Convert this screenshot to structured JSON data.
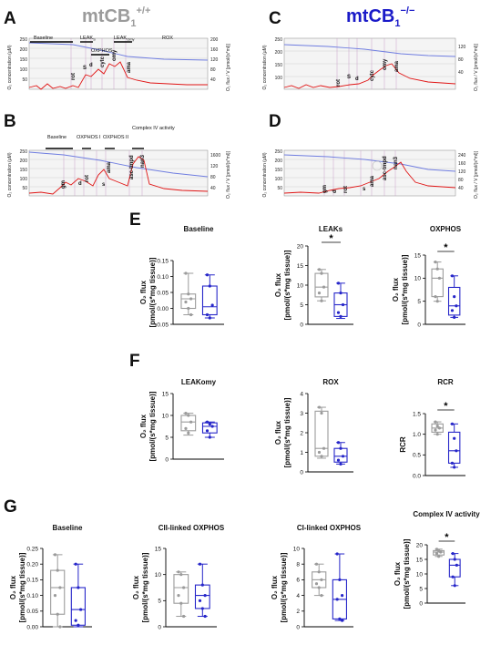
{
  "colors": {
    "wt": "#9b9b9b",
    "ko": "#2626c9",
    "o2_trace": "#6f7de0",
    "flux_trace": "#e01515",
    "title_ko": "#1a1ac8"
  },
  "panels": {
    "A": "A",
    "B": "B",
    "C": "C",
    "D": "D",
    "E": "E",
    "F": "F",
    "G": "G"
  },
  "genotypes": {
    "wt_main": "mtCB",
    "wt_sub": "1",
    "wt_sup": "+/+",
    "ko_main": "mtCB",
    "ko_sub": "1",
    "ko_sup": "−/−"
  },
  "traces": {
    "left_axis_label": "O₂ concentration (µM)",
    "right_axis_label": "O₂ flux / V [pmol/(s*ml)]",
    "A": {
      "left_ticks": [
        "250",
        "200",
        "150",
        "100",
        "50"
      ],
      "right_ticks": [
        "200",
        "160",
        "120",
        "80",
        "40"
      ],
      "segments": [
        "Baseline",
        "LEAK",
        "OXPHOS",
        "LEAK",
        "ROX"
      ],
      "segment_subs": [
        "",
        "S",
        "",
        "Omy",
        ""
      ],
      "events": [
        "rot",
        "S",
        "d",
        "cytc",
        "omy",
        "ama"
      ]
    },
    "B": {
      "left_ticks": [
        "250",
        "200",
        "150",
        "100",
        "50"
      ],
      "right_ticks": [
        "1600",
        "120",
        "80",
        "40"
      ],
      "segments": [
        "Baseline",
        "OXPHOS I",
        "OXPHOS II",
        "Complex IV activity"
      ],
      "events": [
        "gm",
        "d",
        "rot",
        "s",
        "ama",
        "asc-tmpd",
        "nan3"
      ]
    },
    "C": {
      "left_ticks": [
        "250",
        "200",
        "150",
        "100"
      ],
      "right_ticks": [
        "120",
        "80",
        "40"
      ],
      "events": [
        "rot",
        "S",
        "d",
        "cytc",
        "omy",
        "ama"
      ]
    },
    "D": {
      "left_ticks": [
        "250",
        "200",
        "150",
        "100",
        "50"
      ],
      "right_ticks": [
        "240",
        "160",
        "120",
        "80",
        "40"
      ],
      "events": [
        "gm",
        "d",
        "rot",
        "s",
        "ama",
        "asc-tmpd",
        "nan3"
      ]
    }
  },
  "y_label_line1": "O₂ flux",
  "y_label_line2": "[pmol/(s*mg tissue)]",
  "rcr_label": "RCR",
  "significance": "*",
  "chart_data": [
    {
      "type": "box",
      "panel": "E",
      "title": "Baseline",
      "ylim": [
        -0.05,
        0.15
      ],
      "ticks": [
        "0.15",
        "0.10",
        "0.05",
        "0.00",
        "-0.05"
      ],
      "series": [
        {
          "color": "wt",
          "whisker": [
            -0.02,
            0.11
          ],
          "box": [
            0.0,
            0.045
          ],
          "median": 0.03,
          "points": [
            0.11,
            0.045,
            0.03,
            0.02,
            0.0,
            -0.02
          ]
        },
        {
          "color": "ko",
          "whisker": [
            -0.03,
            0.105
          ],
          "box": [
            -0.02,
            0.07
          ],
          "median": 0.005,
          "points": [
            0.105,
            0.07,
            0.01,
            -0.02,
            -0.03
          ]
        }
      ],
      "sig": false
    },
    {
      "type": "box",
      "panel": "E",
      "title": "LEAKs",
      "ylim": [
        0,
        20
      ],
      "ticks": [
        "20",
        "15",
        "10",
        "5",
        "0"
      ],
      "series": [
        {
          "color": "wt",
          "whisker": [
            6,
            14
          ],
          "box": [
            7,
            13
          ],
          "median": 9.5,
          "points": [
            14,
            13,
            9.5,
            8,
            6
          ]
        },
        {
          "color": "ko",
          "whisker": [
            1.5,
            10.5
          ],
          "box": [
            2,
            8
          ],
          "median": 5,
          "points": [
            10.5,
            8,
            5,
            3,
            2
          ]
        }
      ],
      "sig": true
    },
    {
      "type": "box",
      "panel": "E",
      "title": "OXPHOS",
      "ylim": [
        0,
        15
      ],
      "ticks": [
        "15",
        "10",
        "5",
        "0"
      ],
      "series": [
        {
          "color": "wt",
          "whisker": [
            5,
            13.5
          ],
          "box": [
            6,
            12
          ],
          "median": 10,
          "points": [
            13.5,
            12,
            10,
            6,
            5
          ]
        },
        {
          "color": "ko",
          "whisker": [
            1.5,
            10.5
          ],
          "box": [
            2,
            8
          ],
          "median": 4,
          "points": [
            10.5,
            6,
            4,
            3,
            1.5
          ]
        }
      ],
      "sig": true
    },
    {
      "type": "box",
      "panel": "F",
      "title": "LEAKomy",
      "ylim": [
        0,
        15
      ],
      "ticks": [
        "15",
        "10",
        "5",
        "0"
      ],
      "series": [
        {
          "color": "wt",
          "whisker": [
            5.5,
            10.5
          ],
          "box": [
            6.5,
            10
          ],
          "median": 8.5,
          "points": [
            10.5,
            10,
            8.5,
            7,
            6
          ]
        },
        {
          "color": "ko",
          "whisker": [
            5,
            8.5
          ],
          "box": [
            6,
            8.3
          ],
          "median": 7.5,
          "points": [
            8.5,
            8,
            7.5,
            6.5,
            5
          ]
        }
      ],
      "sig": false
    },
    {
      "type": "box",
      "panel": "F",
      "title": "ROX",
      "ylim": [
        0,
        4
      ],
      "ticks": [
        "4",
        "3",
        "2",
        "1",
        "0"
      ],
      "series": [
        {
          "color": "wt",
          "whisker": [
            0.7,
            3.3
          ],
          "box": [
            0.8,
            3.1
          ],
          "median": 1.2,
          "points": [
            3.3,
            3.0,
            1.2,
            1.0,
            0.8
          ]
        },
        {
          "color": "ko",
          "whisker": [
            0.4,
            1.5
          ],
          "box": [
            0.5,
            1.2
          ],
          "median": 0.8,
          "points": [
            1.5,
            1.2,
            0.8,
            0.6,
            0.4
          ]
        }
      ],
      "sig": false
    },
    {
      "type": "box",
      "panel": "F",
      "title": "RCR",
      "ylabel": "RCR",
      "ylim": [
        0,
        1.5
      ],
      "ticks": [
        "1.5",
        "1.0",
        "0.5",
        "0.0"
      ],
      "series": [
        {
          "color": "wt",
          "whisker": [
            1.0,
            1.3
          ],
          "box": [
            1.05,
            1.25
          ],
          "median": 1.15,
          "points": [
            1.3,
            1.2,
            1.15,
            1.1,
            1.0
          ]
        },
        {
          "color": "ko",
          "whisker": [
            0.2,
            1.25
          ],
          "box": [
            0.3,
            1.05
          ],
          "median": 0.6,
          "points": [
            1.25,
            0.9,
            0.6,
            0.3,
            0.2
          ]
        }
      ],
      "sig": true
    },
    {
      "type": "box",
      "panel": "G",
      "title": "Baseline",
      "ylim": [
        0,
        0.25
      ],
      "ticks": [
        "0.25",
        "0.20",
        "0.15",
        "0.10",
        "0.05",
        "0.00"
      ],
      "series": [
        {
          "color": "wt",
          "whisker": [
            0.0,
            0.23
          ],
          "box": [
            0.04,
            0.18
          ],
          "median": 0.125,
          "points": [
            0.23,
            0.18,
            0.125,
            0.1,
            0.04,
            0.0
          ]
        },
        {
          "color": "ko",
          "whisker": [
            0.0,
            0.2
          ],
          "box": [
            0.005,
            0.125
          ],
          "median": 0.055,
          "points": [
            0.2,
            0.125,
            0.055,
            0.02,
            0.005
          ]
        }
      ],
      "sig": false
    },
    {
      "type": "box",
      "panel": "G",
      "title": "CII-linked OXPHOS",
      "ylim": [
        0,
        15
      ],
      "ticks": [
        "15",
        "10",
        "5",
        "0"
      ],
      "series": [
        {
          "color": "wt",
          "whisker": [
            2,
            10.5
          ],
          "box": [
            4.5,
            10
          ],
          "median": 7.5,
          "points": [
            10.5,
            10,
            7.5,
            6,
            4.5,
            2
          ]
        },
        {
          "color": "ko",
          "whisker": [
            2,
            12
          ],
          "box": [
            3.5,
            8
          ],
          "median": 6,
          "points": [
            12,
            8,
            6,
            5,
            3.5,
            2
          ]
        }
      ],
      "sig": false
    },
    {
      "type": "box",
      "panel": "G",
      "title": "CI-linked OXPHOS",
      "ylim": [
        0,
        10
      ],
      "ticks": [
        "10",
        "8",
        "6",
        "4",
        "2",
        "0"
      ],
      "series": [
        {
          "color": "wt",
          "whisker": [
            4,
            8
          ],
          "box": [
            5,
            7
          ],
          "median": 6,
          "points": [
            8,
            7,
            6,
            5.5,
            5,
            4
          ]
        },
        {
          "color": "ko",
          "whisker": [
            0.8,
            9.3
          ],
          "box": [
            1,
            6
          ],
          "median": 3.5,
          "points": [
            9.3,
            6,
            4,
            3.5,
            1,
            0.8
          ]
        }
      ],
      "sig": false
    },
    {
      "type": "box",
      "panel": "G",
      "title": "Complex IV activity",
      "ylim": [
        0,
        20
      ],
      "ticks": [
        "20",
        "15",
        "10",
        "5",
        "0"
      ],
      "series": [
        {
          "color": "wt",
          "whisker": [
            16,
            18.5
          ],
          "box": [
            16.5,
            18
          ],
          "median": 17.5,
          "points": [
            18.5,
            18,
            17.5,
            17,
            16
          ]
        },
        {
          "color": "ko",
          "whisker": [
            6,
            17
          ],
          "box": [
            9,
            15
          ],
          "median": 13,
          "points": [
            17,
            15,
            13,
            9,
            6
          ]
        }
      ],
      "sig": true
    }
  ]
}
